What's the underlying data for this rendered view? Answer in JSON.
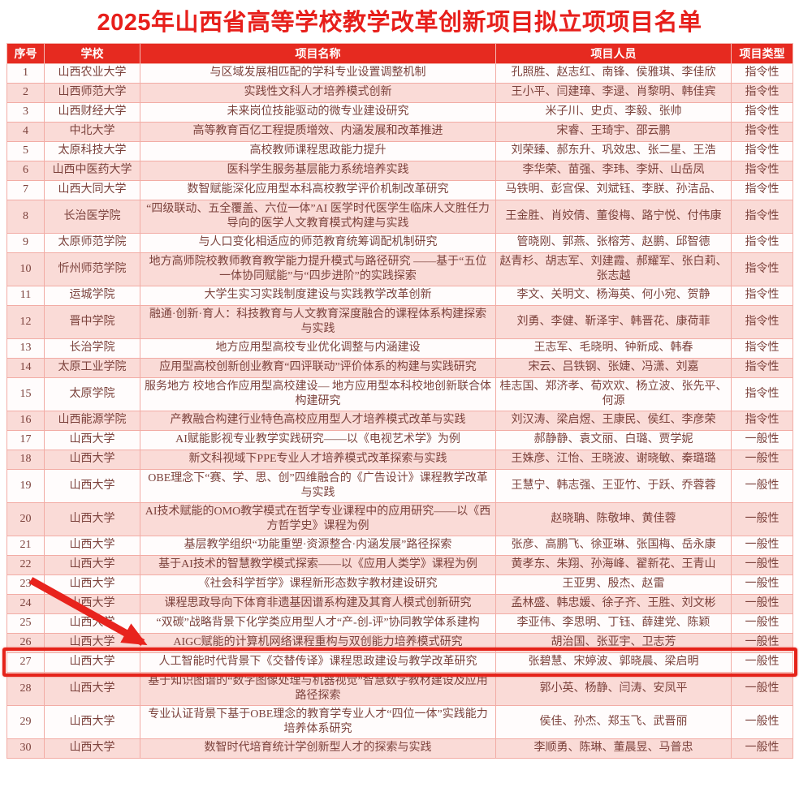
{
  "title": "2025年山西省高等学校教学改革创新项目拟立项项目名单",
  "table": {
    "columns": [
      "序号",
      "学校",
      "项目名称",
      "项目人员",
      "项目类型"
    ],
    "rows": [
      {
        "no": "1",
        "school": "山西农业大学",
        "project": "与区域发展相匹配的学科专业设置调整机制",
        "personnel": "孔照胜、赵志红、南锋、侯雅琪、李佳欣",
        "type": "指令性"
      },
      {
        "no": "2",
        "school": "山西师范大学",
        "project": "实践性文科人才培养模式创新",
        "personnel": "王小平、闫建璋、李逯、肖黎明、韩佳宾",
        "type": "指令性"
      },
      {
        "no": "3",
        "school": "山西财经大学",
        "project": "未来岗位技能驱动的微专业建设研究",
        "personnel": "米子川、史贞、李毅、张帅",
        "type": "指令性"
      },
      {
        "no": "4",
        "school": "中北大学",
        "project": "高等教育百亿工程提质增效、内涵发展和改革推进",
        "personnel": "宋睿、王琦宇、邵云鹏",
        "type": "指令性"
      },
      {
        "no": "5",
        "school": "太原科技大学",
        "project": "高校教师课程思政能力提升",
        "personnel": "刘荣臻、郝东升、巩效忠、张二星、王浩",
        "type": "指令性"
      },
      {
        "no": "6",
        "school": "山西中医药大学",
        "project": "医科学生服务基层能力系统培养实践",
        "personnel": "李华荣、苗强、李玮、李妍、山岳凤",
        "type": "指令性"
      },
      {
        "no": "7",
        "school": "山西大同大学",
        "project": "数智赋能深化应用型本科高校教学评价机制改革研究",
        "personnel": "马铁明、彭宫保、刘斌钰、李朕、孙洁品、",
        "type": "指令性"
      },
      {
        "no": "8",
        "school": "长治医学院",
        "project": "“四级联动、五全覆盖、六位一体”AI 医学时代医学生临床人文胜任力导向的医学人文教育模式构建与实践",
        "personnel": "王金胜、肖姣倩、董俊梅、路宁悦、付伟康",
        "type": "指令性"
      },
      {
        "no": "9",
        "school": "太原师范学院",
        "project": "与人口变化相适应的师范教育统筹调配机制研究",
        "personnel": "管晓刚、郭燕、张榕芳、赵鹏、邱智德",
        "type": "指令性"
      },
      {
        "no": "10",
        "school": "忻州师范学院",
        "project": "地方高师院校教师教育教学能力提升模式与路径研究 ——基于“五位一体协同赋能”与“四步进阶”的实践探索",
        "personnel": "赵青杉、胡志军、刘建霞、郝耀军、张白莉、张志越",
        "type": "指令性"
      },
      {
        "no": "11",
        "school": "运城学院",
        "project": "大学生实习实践制度建设与实践教学改革创新",
        "personnel": "李文、关明文、杨海英、何小宛、贺静",
        "type": "指令性"
      },
      {
        "no": "12",
        "school": "晋中学院",
        "project": "融通·创新·育人：科技教育与人文教育深度融合的课程体系构建探索与实践",
        "personnel": "刘勇、李健、靳泽宇、韩晋花、康荷菲",
        "type": "指令性"
      },
      {
        "no": "13",
        "school": "长治学院",
        "project": "地方应用型高校专业优化调整与内涵建设",
        "personnel": "王志军、毛晓明、钟新成、韩春",
        "type": "指令性"
      },
      {
        "no": "14",
        "school": "太原工业学院",
        "project": "应用型高校创新创业教育“四评联动”评价体系的构建与实践研究",
        "personnel": "宋云、吕铁钢、张婕、冯潇、刘嘉",
        "type": "指令性"
      },
      {
        "no": "15",
        "school": "太原学院",
        "project": "服务地方 校地合作应用型高校建设— 地方应用型本科校地创新联合体构建研究",
        "personnel": "桂志国、郑济孝、荀欢欢、杨立波、张先平、何源",
        "type": "指令性"
      },
      {
        "no": "16",
        "school": "山西能源学院",
        "project": "产教融合构建行业特色高校应用型人才培养模式改革与实践",
        "personnel": "刘汉涛、梁启煜、王康民、侯红、李彦荣",
        "type": "指令性"
      },
      {
        "no": "17",
        "school": "山西大学",
        "project": "AI赋能影视专业教学实践研究——以《电视艺术学》为例",
        "personnel": "郝静静、袁文丽、白璐、贾学妮",
        "type": "一般性"
      },
      {
        "no": "18",
        "school": "山西大学",
        "project": "新文科视域下PPE专业人才培养模式改革探索与实践",
        "personnel": "王姝彦、江怡、王晓波、谢晓敏、秦璐璐",
        "type": "一般性"
      },
      {
        "no": "19",
        "school": "山西大学",
        "project": "OBE理念下“赛、学、思、创”四维融合的《广告设计》课程教学改革与实践",
        "personnel": "王慧宁、韩志强、王亚竹、于跃、乔蓉蓉",
        "type": "一般性"
      },
      {
        "no": "20",
        "school": "山西大学",
        "project": "AI技术赋能的OMO教学模式在哲学专业课程中的应用研究——以《西方哲学史》课程为例",
        "personnel": "赵晓聃、陈敬坤、黄佳蓉",
        "type": "一般性"
      },
      {
        "no": "21",
        "school": "山西大学",
        "project": "基层教学组织“功能重塑·资源整合·内涵发展”路径探索",
        "personnel": "张彦、高鹏飞、徐亚琳、张国梅、岳永康",
        "type": "一般性"
      },
      {
        "no": "22",
        "school": "山西大学",
        "project": "基于AI技术的智慧教学模式探索——以《应用人类学》课程为例",
        "personnel": "黄孝东、朱翔、孙海峰、翟新花、王青山",
        "type": "一般性"
      },
      {
        "no": "23",
        "school": "山西大学",
        "project": "《社会科学哲学》课程新形态数字教材建设研究",
        "personnel": "王亚男、殷杰、赵雷",
        "type": "一般性"
      },
      {
        "no": "24",
        "school": "山西大学",
        "project": "课程思政导向下体育非遗基因谱系构建及其育人模式创新研究",
        "personnel": "孟林盛、韩忠媛、徐子齐、王胜、刘文彬",
        "type": "一般性"
      },
      {
        "no": "25",
        "school": "山西大学",
        "project": "“双碳”战略背景下化学类应用型人才“产-创-评”协同教学体系建构",
        "personnel": "李亚伟、李思明、丁钰、薛建党、陈颖",
        "type": "一般性"
      },
      {
        "no": "26",
        "school": "山西大学",
        "project": "AIGC赋能的计算机网络课程重构与双创能力培养模式研究",
        "personnel": "胡治国、张亚宇、卫志芳",
        "type": "一般性"
      },
      {
        "no": "27",
        "school": "山西大学",
        "project": "人工智能时代背景下《交替传译》课程思政建设与教学改革研究",
        "personnel": "张碧慧、宋婷波、郭晓晨、梁启明",
        "type": "一般性"
      },
      {
        "no": "28",
        "school": "山西大学",
        "project": "基于知识图谱的“数字图像处理与机器视觉”智慧数字教材建设及应用路径探索",
        "personnel": "郭小英、杨静、闫涛、安凤平",
        "type": "一般性"
      },
      {
        "no": "29",
        "school": "山西大学",
        "project": "专业认证背景下基于OBE理念的教育学专业人才“四位一体”实践能力培养体系研究",
        "personnel": "侯佳、孙杰、郑玉飞、武晋丽",
        "type": "一般性"
      },
      {
        "no": "30",
        "school": "山西大学",
        "project": "数智时代培育统计学创新型人才的探索与实践",
        "personnel": "李顺勇、陈琳、董晨昱、马普忠",
        "type": "一般性"
      }
    ]
  },
  "annotations": {
    "highlight_row_no": "27",
    "arrow_from_row_no": "23",
    "arrow_to_row_no": "26"
  },
  "colors": {
    "title_red": "#e71f1b",
    "header_bg": "#e62a20",
    "header_text": "#ffffff",
    "row_pink": "#fadbd7",
    "row_white": "#fffcfc",
    "body_text": "#7c423c",
    "grid_line": "#f2aca5",
    "highlight_border": "#e5231a",
    "arrow_red": "#e8231d"
  }
}
